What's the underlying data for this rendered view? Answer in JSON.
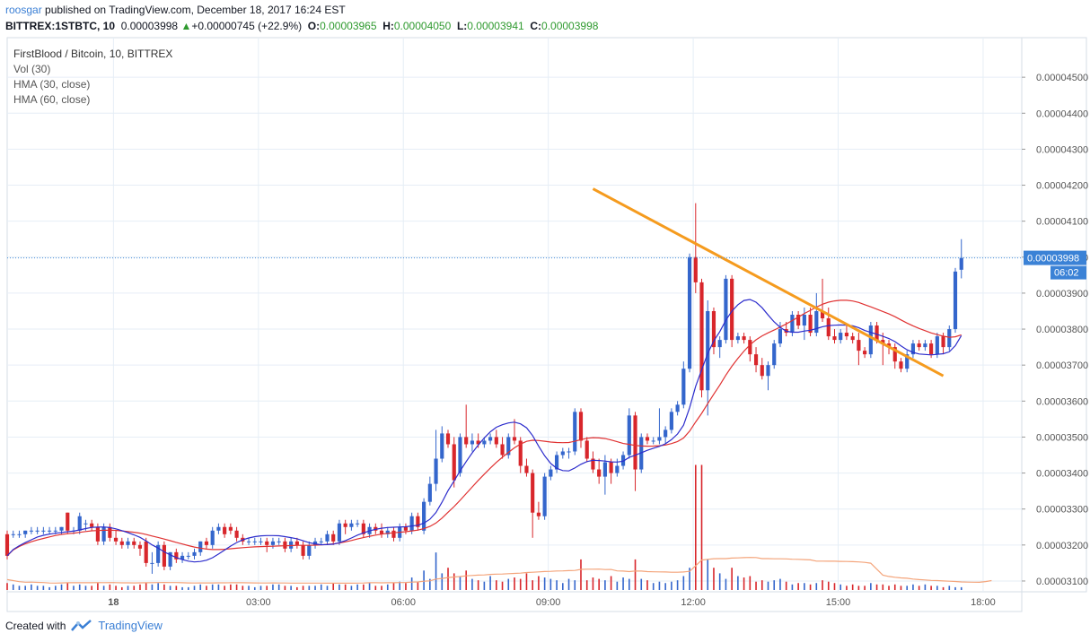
{
  "header": {
    "author": "roosgar",
    "published_text": " published on TradingView.com, December 18, 2017 16:24 EST",
    "symbol": "BITTREX:1STBTC, 10",
    "last": "0.00003998",
    "change": "+0.00000745 (+22.9%)",
    "o_label": "O:",
    "o_value": "0.00003965",
    "h_label": "H:",
    "h_value": "0.00004050",
    "l_label": "L:",
    "l_value": "0.00003941",
    "c_label": "C:",
    "c_value": "0.00003998"
  },
  "legend": {
    "title": "FirstBlood / Bitcoin, 10, BITTREX",
    "vol": "Vol (30)",
    "hma30": "HMA (30, close)",
    "hma60": "HMA (60, close)"
  },
  "price_tag": {
    "price": "0.00003998",
    "countdown": "06:02"
  },
  "footer": {
    "created_with": "Created with",
    "brand": "TradingView"
  },
  "colors": {
    "up": "#3466cc",
    "down": "#d8262b",
    "hma30": "#2c2ccc",
    "hma60": "#e03232",
    "trendline": "#f59b1e",
    "volma": "#f4a47a",
    "grid": "#e6eef6",
    "lastline": "#4a90d9"
  },
  "chart_data": {
    "type": "candlestick",
    "title": "FirstBlood / Bitcoin, 10, BITTREX",
    "y_ticks": [
      "0.00003100",
      "0.00003200",
      "0.00003300",
      "0.00003400",
      "0.00003500",
      "0.00003600",
      "0.00003700",
      "0.00003800",
      "0.00003900",
      "0.00004000",
      "0.00004100",
      "0.00004200",
      "0.00004300",
      "0.00004400",
      "0.00004500"
    ],
    "ylim": [
      3.07e-05,
      4.61e-05
    ],
    "x_ticks": [
      "18",
      "03:00",
      "06:00",
      "09:00",
      "12:00",
      "15:00",
      "18:00"
    ],
    "x_tick_bars": [
      22,
      52,
      82,
      112,
      142,
      172,
      202
    ],
    "bar_count_range": [
      0,
      210
    ],
    "candles": [
      {
        "o": 3.23,
        "h": 3.24,
        "l": 3.16,
        "c": 3.17
      },
      {
        "o": 3.23,
        "h": 3.24,
        "l": 3.22,
        "c": 3.23
      },
      {
        "o": 3.23,
        "h": 3.24,
        "l": 3.22,
        "c": 3.23
      },
      {
        "o": 3.23,
        "h": 3.24,
        "l": 3.22,
        "c": 3.24
      },
      {
        "o": 3.24,
        "h": 3.25,
        "l": 3.23,
        "c": 3.24
      },
      {
        "o": 3.24,
        "h": 3.25,
        "l": 3.23,
        "c": 3.24
      },
      {
        "o": 3.24,
        "h": 3.25,
        "l": 3.23,
        "c": 3.24
      },
      {
        "o": 3.24,
        "h": 3.25,
        "l": 3.23,
        "c": 3.24
      },
      {
        "o": 3.24,
        "h": 3.25,
        "l": 3.23,
        "c": 3.24
      },
      {
        "o": 3.24,
        "h": 3.25,
        "l": 3.23,
        "c": 3.25
      },
      {
        "o": 3.29,
        "h": 3.29,
        "l": 3.23,
        "c": 3.24
      },
      {
        "o": 3.24,
        "h": 3.25,
        "l": 3.23,
        "c": 3.24
      },
      {
        "o": 3.24,
        "h": 3.29,
        "l": 3.23,
        "c": 3.28
      },
      {
        "o": 3.26,
        "h": 3.27,
        "l": 3.24,
        "c": 3.26
      },
      {
        "o": 3.26,
        "h": 3.27,
        "l": 3.24,
        "c": 3.25
      },
      {
        "o": 3.25,
        "h": 3.26,
        "l": 3.2,
        "c": 3.21
      },
      {
        "o": 3.21,
        "h": 3.26,
        "l": 3.2,
        "c": 3.25
      },
      {
        "o": 3.25,
        "h": 3.26,
        "l": 3.21,
        "c": 3.22
      },
      {
        "o": 3.22,
        "h": 3.24,
        "l": 3.2,
        "c": 3.21
      },
      {
        "o": 3.21,
        "h": 3.22,
        "l": 3.19,
        "c": 3.2
      },
      {
        "o": 3.2,
        "h": 3.22,
        "l": 3.19,
        "c": 3.21
      },
      {
        "o": 3.21,
        "h": 3.22,
        "l": 3.19,
        "c": 3.2
      },
      {
        "o": 3.2,
        "h": 3.21,
        "l": 3.17,
        "c": 3.19
      },
      {
        "o": 3.21,
        "h": 3.22,
        "l": 3.14,
        "c": 3.15
      },
      {
        "o": 3.15,
        "h": 3.18,
        "l": 3.12,
        "c": 3.15
      },
      {
        "o": 3.15,
        "h": 3.21,
        "l": 3.14,
        "c": 3.2
      },
      {
        "o": 3.2,
        "h": 3.21,
        "l": 3.13,
        "c": 3.14
      },
      {
        "o": 3.14,
        "h": 3.18,
        "l": 3.13,
        "c": 3.18
      },
      {
        "o": 3.18,
        "h": 3.19,
        "l": 3.15,
        "c": 3.16
      },
      {
        "o": 3.16,
        "h": 3.18,
        "l": 3.15,
        "c": 3.17
      },
      {
        "o": 3.17,
        "h": 3.18,
        "l": 3.16,
        "c": 3.17
      },
      {
        "o": 3.17,
        "h": 3.19,
        "l": 3.16,
        "c": 3.18
      },
      {
        "o": 3.18,
        "h": 3.21,
        "l": 3.17,
        "c": 3.21
      },
      {
        "o": 3.21,
        "h": 3.22,
        "l": 3.19,
        "c": 3.2
      },
      {
        "o": 3.2,
        "h": 3.25,
        "l": 3.19,
        "c": 3.24
      },
      {
        "o": 3.24,
        "h": 3.26,
        "l": 3.23,
        "c": 3.25
      },
      {
        "o": 3.25,
        "h": 3.26,
        "l": 3.22,
        "c": 3.23
      },
      {
        "o": 3.25,
        "h": 3.26,
        "l": 3.23,
        "c": 3.24
      },
      {
        "o": 3.24,
        "h": 3.25,
        "l": 3.21,
        "c": 3.22
      },
      {
        "o": 3.22,
        "h": 3.23,
        "l": 3.2,
        "c": 3.21
      },
      {
        "o": 3.21,
        "h": 3.22,
        "l": 3.2,
        "c": 3.21
      },
      {
        "o": 3.21,
        "h": 3.22,
        "l": 3.2,
        "c": 3.21
      },
      {
        "o": 3.21,
        "h": 3.22,
        "l": 3.2,
        "c": 3.21
      },
      {
        "o": 3.21,
        "h": 3.22,
        "l": 3.18,
        "c": 3.2
      },
      {
        "o": 3.2,
        "h": 3.22,
        "l": 3.19,
        "c": 3.21
      },
      {
        "o": 3.21,
        "h": 3.22,
        "l": 3.2,
        "c": 3.21
      },
      {
        "o": 3.21,
        "h": 3.22,
        "l": 3.18,
        "c": 3.19
      },
      {
        "o": 3.19,
        "h": 3.22,
        "l": 3.18,
        "c": 3.21
      },
      {
        "o": 3.21,
        "h": 3.22,
        "l": 3.19,
        "c": 3.2
      },
      {
        "o": 3.2,
        "h": 3.21,
        "l": 3.16,
        "c": 3.17
      },
      {
        "o": 3.17,
        "h": 3.21,
        "l": 3.16,
        "c": 3.2
      },
      {
        "o": 3.2,
        "h": 3.22,
        "l": 3.19,
        "c": 3.21
      },
      {
        "o": 3.21,
        "h": 3.22,
        "l": 3.2,
        "c": 3.21
      },
      {
        "o": 3.21,
        "h": 3.24,
        "l": 3.2,
        "c": 3.23
      },
      {
        "o": 3.23,
        "h": 3.24,
        "l": 3.2,
        "c": 3.21
      },
      {
        "o": 3.21,
        "h": 3.27,
        "l": 3.2,
        "c": 3.26
      },
      {
        "o": 3.26,
        "h": 3.27,
        "l": 3.23,
        "c": 3.25
      },
      {
        "o": 3.25,
        "h": 3.27,
        "l": 3.24,
        "c": 3.26
      },
      {
        "o": 3.26,
        "h": 3.27,
        "l": 3.25,
        "c": 3.26
      },
      {
        "o": 3.26,
        "h": 3.27,
        "l": 3.22,
        "c": 3.23
      },
      {
        "o": 3.23,
        "h": 3.26,
        "l": 3.22,
        "c": 3.25
      },
      {
        "o": 3.25,
        "h": 3.26,
        "l": 3.23,
        "c": 3.24
      },
      {
        "o": 3.24,
        "h": 3.26,
        "l": 3.22,
        "c": 3.23
      },
      {
        "o": 3.23,
        "h": 3.25,
        "l": 3.22,
        "c": 3.24
      },
      {
        "o": 3.24,
        "h": 3.25,
        "l": 3.21,
        "c": 3.22
      },
      {
        "o": 3.22,
        "h": 3.26,
        "l": 3.21,
        "c": 3.25
      },
      {
        "o": 3.25,
        "h": 3.26,
        "l": 3.23,
        "c": 3.24
      },
      {
        "o": 3.24,
        "h": 3.29,
        "l": 3.23,
        "c": 3.28
      },
      {
        "o": 3.28,
        "h": 3.29,
        "l": 3.24,
        "c": 3.25
      },
      {
        "o": 3.24,
        "h": 3.33,
        "l": 3.23,
        "c": 3.32
      },
      {
        "o": 3.32,
        "h": 3.39,
        "l": 3.31,
        "c": 3.37
      },
      {
        "o": 3.37,
        "h": 3.52,
        "l": 3.35,
        "c": 3.44
      },
      {
        "o": 3.44,
        "h": 3.53,
        "l": 3.43,
        "c": 3.51
      },
      {
        "o": 3.51,
        "h": 3.52,
        "l": 3.47,
        "c": 3.48
      },
      {
        "o": 3.48,
        "h": 3.5,
        "l": 3.36,
        "c": 3.38
      },
      {
        "o": 3.4,
        "h": 3.51,
        "l": 3.39,
        "c": 3.5
      },
      {
        "o": 3.5,
        "h": 3.59,
        "l": 3.47,
        "c": 3.48
      },
      {
        "o": 3.48,
        "h": 3.51,
        "l": 3.46,
        "c": 3.49
      },
      {
        "o": 3.49,
        "h": 3.51,
        "l": 3.47,
        "c": 3.48
      },
      {
        "o": 3.48,
        "h": 3.5,
        "l": 3.47,
        "c": 3.49
      },
      {
        "o": 3.49,
        "h": 3.51,
        "l": 3.48,
        "c": 3.5
      },
      {
        "o": 3.5,
        "h": 3.52,
        "l": 3.47,
        "c": 3.48
      },
      {
        "o": 3.48,
        "h": 3.5,
        "l": 3.44,
        "c": 3.45
      },
      {
        "o": 3.45,
        "h": 3.51,
        "l": 3.44,
        "c": 3.5
      },
      {
        "o": 3.5,
        "h": 3.55,
        "l": 3.48,
        "c": 3.49
      },
      {
        "o": 3.49,
        "h": 3.5,
        "l": 3.4,
        "c": 3.42
      },
      {
        "o": 3.42,
        "h": 3.44,
        "l": 3.39,
        "c": 3.4
      },
      {
        "o": 3.4,
        "h": 3.41,
        "l": 3.22,
        "c": 3.29
      },
      {
        "o": 3.29,
        "h": 3.32,
        "l": 3.27,
        "c": 3.28
      },
      {
        "o": 3.28,
        "h": 3.4,
        "l": 3.27,
        "c": 3.39
      },
      {
        "o": 3.39,
        "h": 3.42,
        "l": 3.38,
        "c": 3.41
      },
      {
        "o": 3.41,
        "h": 3.46,
        "l": 3.4,
        "c": 3.45
      },
      {
        "o": 3.45,
        "h": 3.47,
        "l": 3.44,
        "c": 3.46
      },
      {
        "o": 3.46,
        "h": 3.47,
        "l": 3.44,
        "c": 3.46
      },
      {
        "o": 3.46,
        "h": 3.58,
        "l": 3.45,
        "c": 3.57
      },
      {
        "o": 3.57,
        "h": 3.58,
        "l": 3.47,
        "c": 3.49
      },
      {
        "o": 3.49,
        "h": 3.5,
        "l": 3.43,
        "c": 3.44
      },
      {
        "o": 3.44,
        "h": 3.46,
        "l": 3.4,
        "c": 3.41
      },
      {
        "o": 3.41,
        "h": 3.44,
        "l": 3.37,
        "c": 3.39
      },
      {
        "o": 3.39,
        "h": 3.45,
        "l": 3.34,
        "c": 3.43
      },
      {
        "o": 3.43,
        "h": 3.44,
        "l": 3.37,
        "c": 3.4
      },
      {
        "o": 3.4,
        "h": 3.44,
        "l": 3.39,
        "c": 3.42
      },
      {
        "o": 3.42,
        "h": 3.46,
        "l": 3.41,
        "c": 3.45
      },
      {
        "o": 3.45,
        "h": 3.58,
        "l": 3.44,
        "c": 3.56
      },
      {
        "o": 3.56,
        "h": 3.57,
        "l": 3.35,
        "c": 3.41
      },
      {
        "o": 3.41,
        "h": 3.51,
        "l": 3.4,
        "c": 3.5
      },
      {
        "o": 3.5,
        "h": 3.51,
        "l": 3.48,
        "c": 3.49
      },
      {
        "o": 3.49,
        "h": 3.5,
        "l": 3.48,
        "c": 3.49
      },
      {
        "o": 3.49,
        "h": 3.58,
        "l": 3.48,
        "c": 3.5
      },
      {
        "o": 3.5,
        "h": 3.53,
        "l": 3.48,
        "c": 3.52
      },
      {
        "o": 3.52,
        "h": 3.58,
        "l": 3.51,
        "c": 3.57
      },
      {
        "o": 3.57,
        "h": 3.6,
        "l": 3.56,
        "c": 3.59
      },
      {
        "o": 3.59,
        "h": 3.71,
        "l": 3.58,
        "c": 3.69
      },
      {
        "o": 3.69,
        "h": 4.01,
        "l": 3.68,
        "c": 4.0
      },
      {
        "o": 4.0,
        "h": 4.15,
        "l": 3.9,
        "c": 3.93
      },
      {
        "o": 3.93,
        "h": 3.94,
        "l": 3.61,
        "c": 3.63
      },
      {
        "o": 3.63,
        "h": 3.88,
        "l": 3.56,
        "c": 3.85
      },
      {
        "o": 3.85,
        "h": 3.86,
        "l": 3.73,
        "c": 3.75
      },
      {
        "o": 3.75,
        "h": 3.78,
        "l": 3.72,
        "c": 3.77
      },
      {
        "o": 3.77,
        "h": 3.95,
        "l": 3.76,
        "c": 3.94
      },
      {
        "o": 3.94,
        "h": 3.95,
        "l": 3.75,
        "c": 3.77
      },
      {
        "o": 3.77,
        "h": 3.79,
        "l": 3.76,
        "c": 3.78
      },
      {
        "o": 3.78,
        "h": 3.79,
        "l": 3.76,
        "c": 3.77
      },
      {
        "o": 3.77,
        "h": 3.78,
        "l": 3.71,
        "c": 3.73
      },
      {
        "o": 3.73,
        "h": 3.75,
        "l": 3.68,
        "c": 3.7
      },
      {
        "o": 3.7,
        "h": 3.72,
        "l": 3.66,
        "c": 3.67
      },
      {
        "o": 3.67,
        "h": 3.71,
        "l": 3.63,
        "c": 3.7
      },
      {
        "o": 3.7,
        "h": 3.77,
        "l": 3.69,
        "c": 3.76
      },
      {
        "o": 3.76,
        "h": 3.82,
        "l": 3.75,
        "c": 3.8
      },
      {
        "o": 3.8,
        "h": 3.82,
        "l": 3.78,
        "c": 3.79
      },
      {
        "o": 3.79,
        "h": 3.85,
        "l": 3.78,
        "c": 3.84
      },
      {
        "o": 3.84,
        "h": 3.85,
        "l": 3.8,
        "c": 3.81
      },
      {
        "o": 3.81,
        "h": 3.86,
        "l": 3.77,
        "c": 3.84
      },
      {
        "o": 3.84,
        "h": 3.86,
        "l": 3.78,
        "c": 3.79
      },
      {
        "o": 3.79,
        "h": 3.9,
        "l": 3.78,
        "c": 3.85
      },
      {
        "o": 3.85,
        "h": 3.94,
        "l": 3.82,
        "c": 3.83
      },
      {
        "o": 3.83,
        "h": 3.86,
        "l": 3.77,
        "c": 3.78
      },
      {
        "o": 3.78,
        "h": 3.8,
        "l": 3.76,
        "c": 3.77
      },
      {
        "o": 3.77,
        "h": 3.8,
        "l": 3.76,
        "c": 3.79
      },
      {
        "o": 3.79,
        "h": 3.81,
        "l": 3.77,
        "c": 3.78
      },
      {
        "o": 3.78,
        "h": 3.79,
        "l": 3.76,
        "c": 3.77
      },
      {
        "o": 3.77,
        "h": 3.79,
        "l": 3.7,
        "c": 3.74
      },
      {
        "o": 3.74,
        "h": 3.75,
        "l": 3.72,
        "c": 3.73
      },
      {
        "o": 3.73,
        "h": 3.82,
        "l": 3.72,
        "c": 3.81
      },
      {
        "o": 3.81,
        "h": 3.82,
        "l": 3.76,
        "c": 3.77
      },
      {
        "o": 3.77,
        "h": 3.79,
        "l": 3.7,
        "c": 3.76
      },
      {
        "o": 3.76,
        "h": 3.77,
        "l": 3.73,
        "c": 3.75
      },
      {
        "o": 3.75,
        "h": 3.76,
        "l": 3.69,
        "c": 3.71
      },
      {
        "o": 3.71,
        "h": 3.72,
        "l": 3.68,
        "c": 3.69
      },
      {
        "o": 3.69,
        "h": 3.74,
        "l": 3.68,
        "c": 3.73
      },
      {
        "o": 3.73,
        "h": 3.77,
        "l": 3.72,
        "c": 3.76
      },
      {
        "o": 3.76,
        "h": 3.77,
        "l": 3.74,
        "c": 3.75
      },
      {
        "o": 3.75,
        "h": 3.77,
        "l": 3.74,
        "c": 3.76
      },
      {
        "o": 3.76,
        "h": 3.77,
        "l": 3.72,
        "c": 3.73
      },
      {
        "o": 3.73,
        "h": 3.79,
        "l": 3.72,
        "c": 3.78
      },
      {
        "o": 3.78,
        "h": 3.79,
        "l": 3.73,
        "c": 3.75
      },
      {
        "o": 3.75,
        "h": 3.81,
        "l": 3.74,
        "c": 3.8
      },
      {
        "o": 3.8,
        "h": 3.97,
        "l": 3.79,
        "c": 3.96
      },
      {
        "o": 3.965,
        "h": 4.05,
        "l": 3.941,
        "c": 3.998
      }
    ],
    "candle_bar_index_start": 0,
    "candle_bar_step": 1.25,
    "candle_bar_offset": 0,
    "volume_relative": [
      0.05,
      0.04,
      0.03,
      0.03,
      0.04,
      0.03,
      0.03,
      0.02,
      0.03,
      0.04,
      0.05,
      0.03,
      0.04,
      0.03,
      0.03,
      0.05,
      0.03,
      0.04,
      0.03,
      0.02,
      0.03,
      0.03,
      0.04,
      0.05,
      0.04,
      0.05,
      0.04,
      0.03,
      0.03,
      0.02,
      0.02,
      0.03,
      0.04,
      0.03,
      0.04,
      0.04,
      0.03,
      0.04,
      0.04,
      0.03,
      0.03,
      0.02,
      0.03,
      0.03,
      0.04,
      0.04,
      0.03,
      0.03,
      0.02,
      0.03,
      0.03,
      0.03,
      0.04,
      0.03,
      0.05,
      0.04,
      0.04,
      0.03,
      0.04,
      0.04,
      0.05,
      0.03,
      0.03,
      0.04,
      0.05,
      0.06,
      0.05,
      0.09,
      0.06,
      0.14,
      0.08,
      0.27,
      0.12,
      0.16,
      0.12,
      0.1,
      0.14,
      0.08,
      0.07,
      0.06,
      0.1,
      0.07,
      0.06,
      0.08,
      0.09,
      0.08,
      0.12,
      0.07,
      0.1,
      0.09,
      0.08,
      0.07,
      0.05,
      0.08,
      0.07,
      0.22,
      0.07,
      0.09,
      0.08,
      0.07,
      0.1,
      0.06,
      0.09,
      0.08,
      0.22,
      0.08,
      0.07,
      0.05,
      0.06,
      0.05,
      0.06,
      0.07,
      0.1,
      0.16,
      0.9,
      0.9,
      0.22,
      0.16,
      0.12,
      0.08,
      0.16,
      0.1,
      0.09,
      0.1,
      0.06,
      0.07,
      0.06,
      0.07,
      0.08,
      0.06,
      0.04,
      0.05,
      0.05,
      0.04,
      0.05,
      0.07,
      0.06,
      0.05,
      0.04,
      0.03,
      0.04,
      0.03,
      0.03,
      0.05,
      0.04,
      0.04,
      0.03,
      0.04,
      0.03,
      0.03,
      0.04,
      0.03,
      0.04,
      0.03,
      0.03,
      0.02,
      0.03,
      0.02,
      0.02,
      0.03,
      0.03,
      0.04,
      0.15,
      0.18
    ],
    "trendline": {
      "start": {
        "bar_index": 97,
        "price": 4.19
      },
      "end": {
        "bar_index": 155,
        "price": 3.67
      }
    },
    "price_unit_multiplier": "1e-5"
  }
}
